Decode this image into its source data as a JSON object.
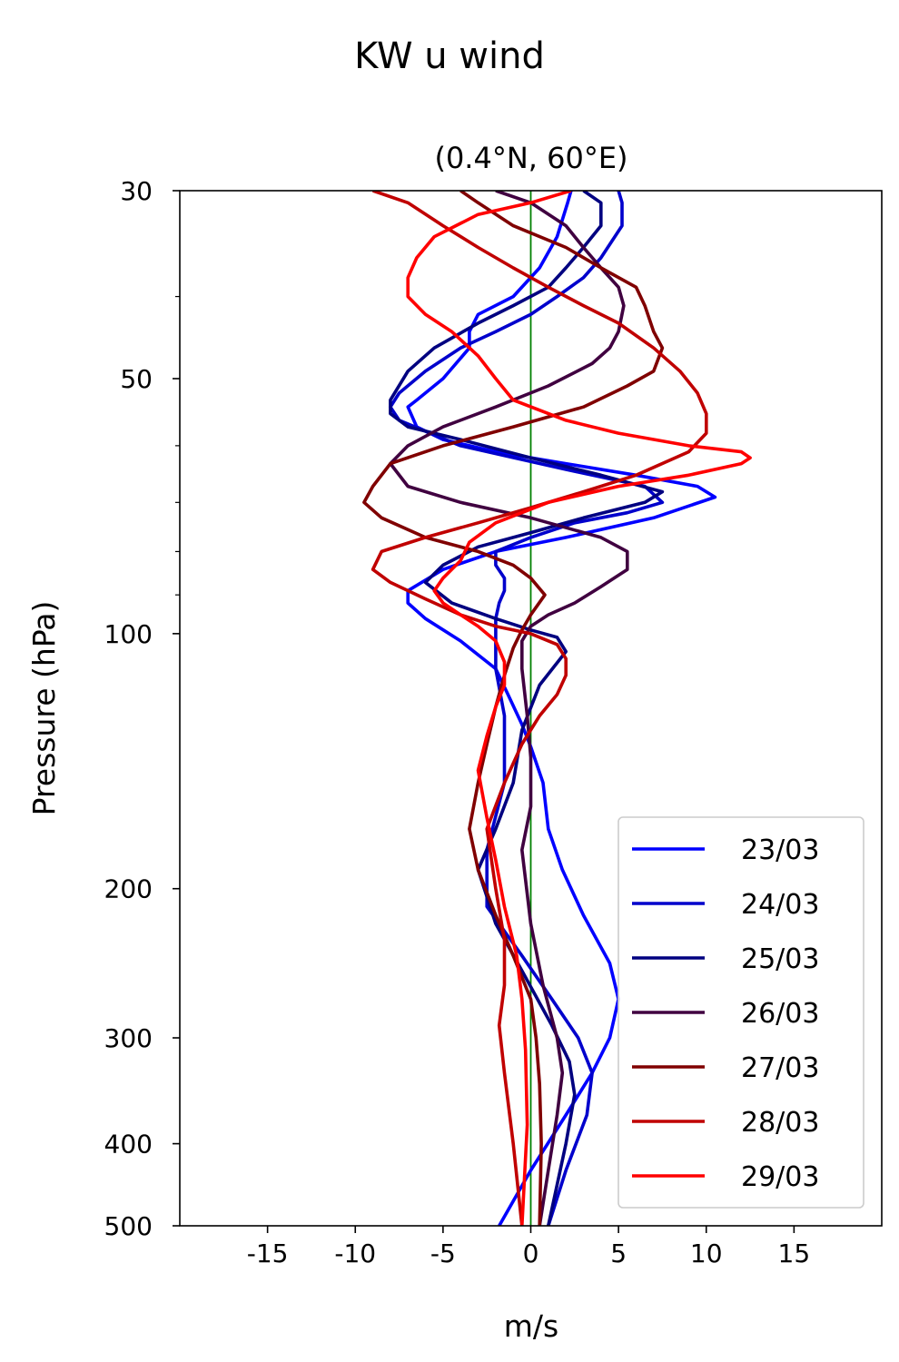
{
  "chart_data": {
    "type": "line",
    "suptitle": "KW u wind",
    "title": "(0.4°N, 60°E)",
    "xlabel": "m/s",
    "ylabel": "Pressure (hPa)",
    "xlim": [
      -20,
      20
    ],
    "ylim": [
      500,
      30
    ],
    "y_scale": "log",
    "x_ticks": [
      -15,
      -10,
      -5,
      0,
      5,
      10,
      15
    ],
    "x_tick_labels": [
      "-15",
      "-10",
      "-5",
      "0",
      "5",
      "10",
      "15"
    ],
    "y_ticks": [
      30,
      50,
      100,
      200,
      300,
      400,
      500
    ],
    "y_tick_labels": [
      "30",
      "50",
      "100",
      "200",
      "300",
      "400",
      "500"
    ],
    "y_minor_ticks": [
      40,
      60,
      70,
      80,
      90
    ],
    "reference_line": {
      "x": 0,
      "color": "#008000"
    },
    "legend_position": "lower right",
    "grid": false,
    "series": [
      {
        "name": "23/03",
        "color": "#0000ff",
        "points": [
          [
            2.3,
            30
          ],
          [
            2.1,
            31
          ],
          [
            1.5,
            34
          ],
          [
            0.5,
            37
          ],
          [
            -1,
            40
          ],
          [
            -3,
            42
          ],
          [
            -3.5,
            44
          ],
          [
            -3.5,
            46
          ],
          [
            -5,
            50
          ],
          [
            -6.5,
            53
          ],
          [
            -7,
            54
          ],
          [
            -6.5,
            57
          ],
          [
            -5,
            59
          ],
          [
            -2,
            61
          ],
          [
            2,
            63
          ],
          [
            6,
            65
          ],
          [
            9.5,
            67
          ],
          [
            10.5,
            69
          ],
          [
            7,
            73
          ],
          [
            2,
            77
          ],
          [
            -2,
            80
          ],
          [
            -5,
            84
          ],
          [
            -7,
            89
          ],
          [
            -7,
            92
          ],
          [
            -6,
            96
          ],
          [
            -4,
            102
          ],
          [
            -2,
            110
          ],
          [
            -1.3,
            118
          ],
          [
            -0.5,
            128
          ],
          [
            0,
            136
          ],
          [
            0.7,
            150
          ],
          [
            1,
            170
          ],
          [
            1.8,
            190
          ],
          [
            3,
            215
          ],
          [
            4.5,
            245
          ],
          [
            5,
            270
          ],
          [
            4.5,
            300
          ],
          [
            3.5,
            330
          ],
          [
            2,
            370
          ],
          [
            0,
            430
          ],
          [
            -1.8,
            500
          ]
        ]
      },
      {
        "name": "24/03",
        "color": "#0000cc",
        "points": [
          [
            5,
            30
          ],
          [
            5.2,
            31
          ],
          [
            5.2,
            33
          ],
          [
            4,
            36
          ],
          [
            3,
            38
          ],
          [
            1.5,
            40
          ],
          [
            0,
            42
          ],
          [
            -2,
            44
          ],
          [
            -4,
            46
          ],
          [
            -6,
            49
          ],
          [
            -7.5,
            52
          ],
          [
            -8,
            54
          ],
          [
            -7.5,
            56
          ],
          [
            -4,
            60
          ],
          [
            2,
            64
          ],
          [
            6.5,
            67
          ],
          [
            7.5,
            70
          ],
          [
            5.5,
            72
          ],
          [
            2.5,
            74
          ],
          [
            0,
            77
          ],
          [
            -2,
            80
          ],
          [
            -2,
            83
          ],
          [
            -1.5,
            86
          ],
          [
            -1.5,
            89
          ],
          [
            -1.8,
            92
          ],
          [
            -2,
            96
          ],
          [
            -2,
            101
          ],
          [
            -2,
            110
          ],
          [
            -1.5,
            125
          ],
          [
            -1.5,
            150
          ],
          [
            -2.5,
            180
          ],
          [
            -2.5,
            210
          ],
          [
            -0.5,
            240
          ],
          [
            1.2,
            270
          ],
          [
            2.7,
            300
          ],
          [
            3.5,
            330
          ],
          [
            3.2,
            370
          ],
          [
            2,
            430
          ],
          [
            1,
            500
          ]
        ]
      },
      {
        "name": "25/03",
        "color": "#000080",
        "points": [
          [
            3,
            30
          ],
          [
            4,
            31
          ],
          [
            4,
            33
          ],
          [
            3,
            35
          ],
          [
            2,
            37
          ],
          [
            1,
            39
          ],
          [
            -1,
            41
          ],
          [
            -3,
            43
          ],
          [
            -5.5,
            46
          ],
          [
            -7,
            49
          ],
          [
            -8,
            53
          ],
          [
            -8,
            55
          ],
          [
            -7,
            57
          ],
          [
            -4,
            59
          ],
          [
            0,
            62
          ],
          [
            4,
            65
          ],
          [
            7.5,
            68
          ],
          [
            6.5,
            70
          ],
          [
            3,
            73
          ],
          [
            0,
            76
          ],
          [
            -3,
            79
          ],
          [
            -5,
            83
          ],
          [
            -6,
            87
          ],
          [
            -4.5,
            92
          ],
          [
            -2,
            96
          ],
          [
            0,
            99
          ],
          [
            1.5,
            101
          ],
          [
            2,
            105
          ],
          [
            0.5,
            115
          ],
          [
            -0.5,
            130
          ],
          [
            -1,
            150
          ],
          [
            -2,
            170
          ],
          [
            -3,
            190
          ],
          [
            -2,
            220
          ],
          [
            -0.5,
            250
          ],
          [
            1.2,
            290
          ],
          [
            2.2,
            320
          ],
          [
            2.5,
            350
          ],
          [
            2,
            400
          ],
          [
            1,
            500
          ]
        ]
      },
      {
        "name": "26/03",
        "color": "#400040",
        "points": [
          [
            -2,
            30
          ],
          [
            0,
            31
          ],
          [
            2,
            33
          ],
          [
            3,
            35
          ],
          [
            4,
            37
          ],
          [
            5,
            39
          ],
          [
            5.3,
            41
          ],
          [
            5,
            44
          ],
          [
            4.5,
            46
          ],
          [
            3.5,
            48
          ],
          [
            1,
            51
          ],
          [
            -2,
            54
          ],
          [
            -5,
            57
          ],
          [
            -7,
            60
          ],
          [
            -8,
            63
          ],
          [
            -7,
            67
          ],
          [
            -4,
            70
          ],
          [
            0,
            73
          ],
          [
            4,
            77
          ],
          [
            5.5,
            80
          ],
          [
            5.5,
            84
          ],
          [
            4,
            88
          ],
          [
            2.5,
            92
          ],
          [
            1,
            95
          ],
          [
            0,
            98
          ],
          [
            -0.5,
            102
          ],
          [
            -0.5,
            110
          ],
          [
            -0.2,
            125
          ],
          [
            0,
            140
          ],
          [
            0,
            160
          ],
          [
            -0.5,
            180
          ],
          [
            0,
            220
          ],
          [
            0.7,
            260
          ],
          [
            1.5,
            300
          ],
          [
            1.8,
            330
          ],
          [
            1.5,
            370
          ],
          [
            1,
            430
          ],
          [
            0.5,
            500
          ]
        ]
      },
      {
        "name": "27/03",
        "color": "#800000",
        "points": [
          [
            -4,
            30
          ],
          [
            -3,
            31
          ],
          [
            -1,
            33
          ],
          [
            2,
            35
          ],
          [
            4,
            37
          ],
          [
            6,
            39
          ],
          [
            6.5,
            41
          ],
          [
            7,
            44
          ],
          [
            7.5,
            46
          ],
          [
            7,
            49
          ],
          [
            5.5,
            51
          ],
          [
            3,
            54
          ],
          [
            -1,
            57
          ],
          [
            -5,
            60
          ],
          [
            -8,
            63
          ],
          [
            -9,
            67
          ],
          [
            -9.5,
            70
          ],
          [
            -8.5,
            73
          ],
          [
            -6,
            77
          ],
          [
            -3,
            80
          ],
          [
            -1,
            83
          ],
          [
            0,
            86
          ],
          [
            0.8,
            90
          ],
          [
            0,
            95
          ],
          [
            -0.5,
            99
          ],
          [
            -1,
            104
          ],
          [
            -1.5,
            112
          ],
          [
            -2,
            122
          ],
          [
            -2.5,
            135
          ],
          [
            -3,
            150
          ],
          [
            -3.5,
            170
          ],
          [
            -3,
            190
          ],
          [
            -2,
            215
          ],
          [
            -1,
            240
          ],
          [
            0,
            270
          ],
          [
            0.3,
            300
          ],
          [
            0.5,
            340
          ],
          [
            0.6,
            400
          ],
          [
            0.5,
            500
          ]
        ]
      },
      {
        "name": "28/03",
        "color": "#c00000",
        "points": [
          [
            -9,
            30
          ],
          [
            -7,
            31
          ],
          [
            -5,
            33
          ],
          [
            -3,
            35
          ],
          [
            -1,
            37
          ],
          [
            1,
            39
          ],
          [
            3,
            41
          ],
          [
            5,
            43
          ],
          [
            7,
            46
          ],
          [
            8.5,
            49
          ],
          [
            9.5,
            52
          ],
          [
            10,
            55
          ],
          [
            10,
            58
          ],
          [
            9,
            61
          ],
          [
            6,
            65
          ],
          [
            3,
            68
          ],
          [
            0,
            71
          ],
          [
            -3,
            74
          ],
          [
            -6,
            77
          ],
          [
            -8.5,
            80
          ],
          [
            -9,
            84
          ],
          [
            -8,
            87
          ],
          [
            -6,
            91
          ],
          [
            -4,
            95
          ],
          [
            -2,
            98
          ],
          [
            0,
            100
          ],
          [
            1.5,
            103
          ],
          [
            2,
            107
          ],
          [
            2,
            112
          ],
          [
            1.5,
            118
          ],
          [
            0.5,
            125
          ],
          [
            -0.5,
            135
          ],
          [
            -1.5,
            150
          ],
          [
            -2.5,
            170
          ],
          [
            -2,
            200
          ],
          [
            -1.5,
            230
          ],
          [
            -1.5,
            260
          ],
          [
            -1.8,
            290
          ],
          [
            -1.5,
            330
          ],
          [
            -1,
            400
          ],
          [
            -0.5,
            500
          ]
        ]
      },
      {
        "name": "29/03",
        "color": "#ff0000",
        "points": [
          [
            2.3,
            30
          ],
          [
            0,
            31
          ],
          [
            -3,
            32
          ],
          [
            -5.5,
            34
          ],
          [
            -6.5,
            36
          ],
          [
            -7,
            38
          ],
          [
            -7,
            40
          ],
          [
            -6,
            42
          ],
          [
            -4.5,
            44
          ],
          [
            -3,
            47
          ],
          [
            -2,
            50
          ],
          [
            -1,
            53
          ],
          [
            2,
            56
          ],
          [
            5,
            58
          ],
          [
            9,
            60
          ],
          [
            12,
            61
          ],
          [
            12.5,
            62
          ],
          [
            12,
            63
          ],
          [
            9,
            65
          ],
          [
            5,
            67
          ],
          [
            1,
            70
          ],
          [
            -2,
            74
          ],
          [
            -3.5,
            78
          ],
          [
            -4,
            82
          ],
          [
            -5,
            86
          ],
          [
            -5.5,
            89
          ],
          [
            -5,
            92
          ],
          [
            -4,
            95
          ],
          [
            -3,
            98
          ],
          [
            -2,
            102
          ],
          [
            -1.5,
            108
          ],
          [
            -1.5,
            115
          ],
          [
            -2,
            122
          ],
          [
            -2.5,
            132
          ],
          [
            -3,
            145
          ],
          [
            -2.5,
            165
          ],
          [
            -2,
            185
          ],
          [
            -1.5,
            210
          ],
          [
            -0.8,
            240
          ],
          [
            -0.5,
            270
          ],
          [
            -0.3,
            310
          ],
          [
            -0.2,
            380
          ],
          [
            -0.5,
            500
          ]
        ]
      }
    ]
  }
}
